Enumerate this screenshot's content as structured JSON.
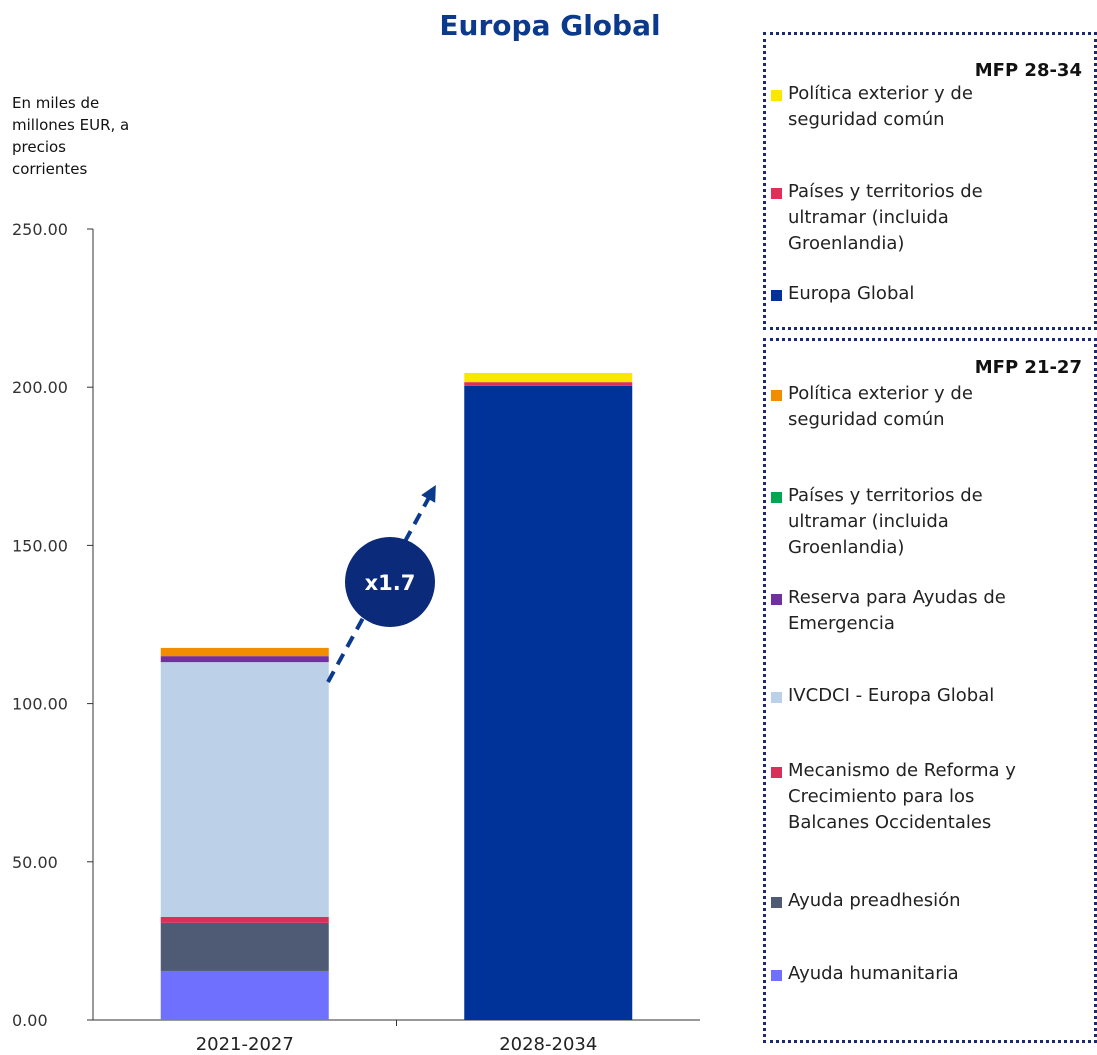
{
  "chart_data": {
    "type": "stacked_bar",
    "title": "Europa Global",
    "y_axis_label": [
      "En miles de",
      "millones EUR, a",
      "precios",
      "corrientes"
    ],
    "categories": [
      "2021-2027",
      "2028-2034"
    ],
    "ylim": [
      0,
      250
    ],
    "yticks": [
      {
        "value": 0,
        "label": "0.00"
      },
      {
        "value": 50,
        "label": "50.00"
      },
      {
        "value": 100,
        "label": "100.00"
      },
      {
        "value": 150,
        "label": "150.00"
      },
      {
        "value": 200,
        "label": "200.00"
      },
      {
        "value": 250,
        "label": "250.00"
      }
    ],
    "annotation": "x1.7",
    "series_groups": [
      {
        "name": "MFP 28-34",
        "series": [
          {
            "name": "Política exterior y de seguridad común",
            "color": "#ffe600",
            "values": [
              null,
              2.9
            ]
          },
          {
            "name": "Países y territorios de ultramar (incluida Groenlandia)",
            "color": "#e0305a",
            "values": [
              null,
              1.2
            ]
          },
          {
            "name": "Europa Global",
            "color": "#003399",
            "values": [
              null,
              200.4
            ]
          }
        ]
      },
      {
        "name": "MFP 21-27",
        "series": [
          {
            "name": "Política exterior y de seguridad común",
            "color": "#f28c00",
            "values": [
              2.6,
              null
            ]
          },
          {
            "name": "Países y territorios de ultramar (incluida Groenlandia)",
            "color": "#00a650",
            "values": [
              null,
              null
            ]
          },
          {
            "name": "Reserva para Ayudas de Emergencia",
            "color": "#7030a0",
            "values": [
              1.9,
              null
            ]
          },
          {
            "name": "IVCDCI - Europa Global",
            "color": "#bcd0e8",
            "values": [
              80.5,
              null
            ]
          },
          {
            "name": "Mecanismo de Reforma y Crecimiento para los Balcanes Occidentales",
            "color": "#d9305a",
            "values": [
              1.9,
              null
            ]
          },
          {
            "name": "Ayuda preadhesión",
            "color": "#4f5b75",
            "values": [
              15.2,
              null
            ]
          },
          {
            "name": "Ayuda humanitaria",
            "color": "#7070ff",
            "values": [
              15.5,
              null
            ]
          }
        ]
      }
    ]
  }
}
